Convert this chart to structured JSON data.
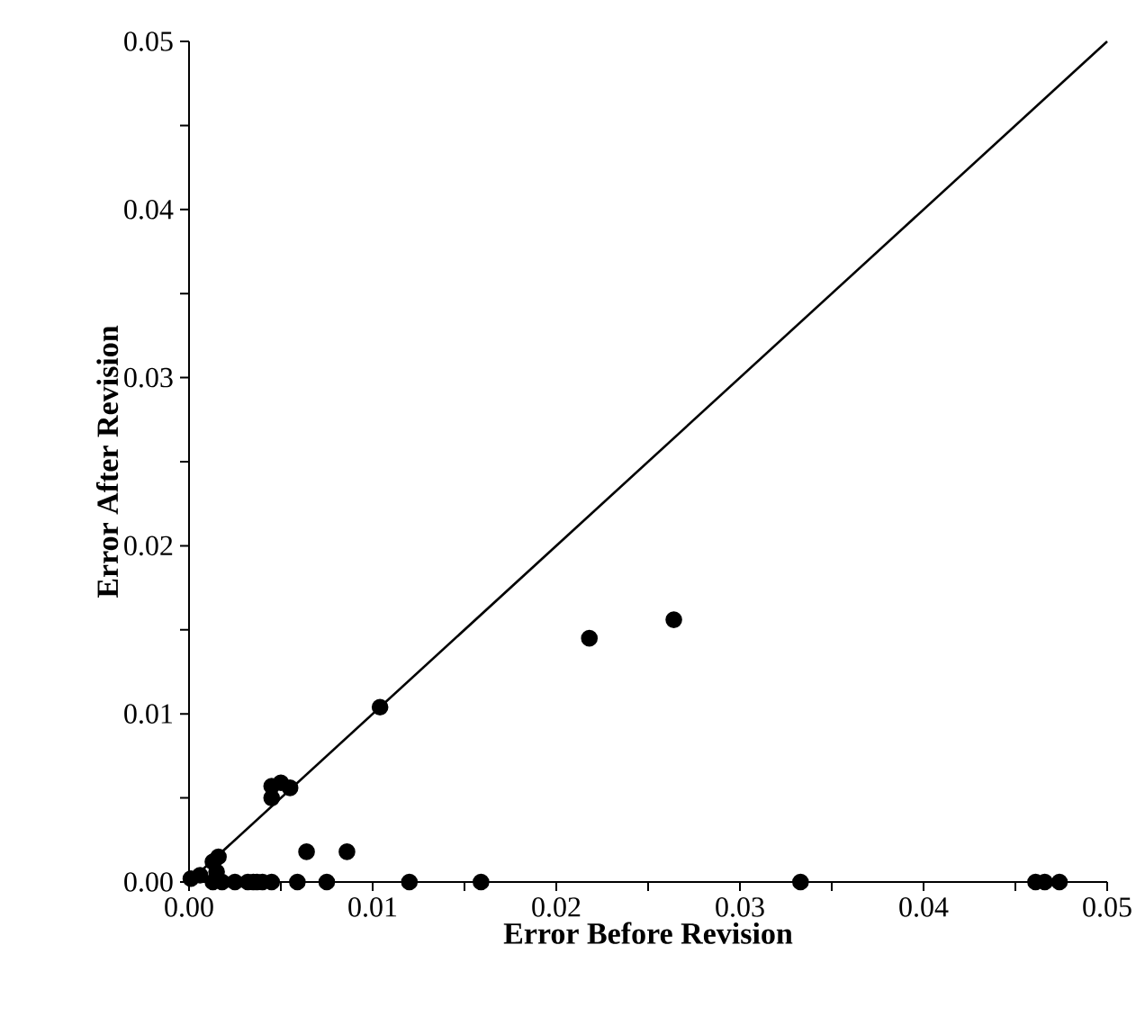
{
  "chart_data": {
    "type": "scatter",
    "xlabel": "Error Before Revision",
    "ylabel": "Error After Revision",
    "xlim": [
      0,
      0.05
    ],
    "ylim": [
      0,
      0.05
    ],
    "xticks": [
      {
        "value": 0,
        "label": "0.00"
      },
      {
        "value": 0.005,
        "label": null
      },
      0.01,
      {
        "value": 0.015,
        "label": null
      },
      0.02,
      {
        "value": 0.025,
        "label": null
      },
      0.03,
      {
        "value": 0.035,
        "label": null
      },
      0.04,
      {
        "value": 0.045,
        "label": null
      },
      0.05
    ],
    "yticks": [
      {
        "value": 0,
        "label": "0.00"
      },
      {
        "value": 0.005,
        "label": null
      },
      0.01,
      {
        "value": 0.015,
        "label": null
      },
      0.02,
      {
        "value": 0.025,
        "label": null
      },
      0.03,
      {
        "value": 0.035,
        "label": null
      },
      0.04,
      {
        "value": 0.045,
        "label": null
      },
      0.05
    ],
    "grid": false,
    "series": [
      {
        "type": "line",
        "color": "#000000",
        "marker": "none",
        "x": [
          0,
          0.05
        ],
        "values": [
          0,
          0.05
        ]
      },
      {
        "marker": "circle",
        "color": "#000000",
        "x": [
          0.0104,
          0.0218,
          0.0264,
          0.0045,
          0.005,
          0.0055,
          0.0045,
          0.0064,
          0.0086,
          0.0016,
          0.0013,
          0.0015,
          0.0001,
          0.0006,
          0.0013,
          0.0018,
          0.0025,
          0.0032,
          0.0035,
          0.0037,
          0.004,
          0.0045,
          0.0059,
          0.0075,
          0.012,
          0.0159,
          0.0333,
          0.0461,
          0.0466,
          0.0474
        ],
        "values": [
          0.0104,
          0.0145,
          0.0156,
          0.0057,
          0.0059,
          0.0056,
          0.005,
          0.0018,
          0.0018,
          0.0015,
          0.0012,
          0.0006,
          0.0002,
          0.0004,
          0,
          0,
          0,
          0,
          0,
          0,
          0,
          0,
          0,
          0,
          0,
          0,
          0,
          0,
          0,
          0
        ]
      }
    ]
  }
}
